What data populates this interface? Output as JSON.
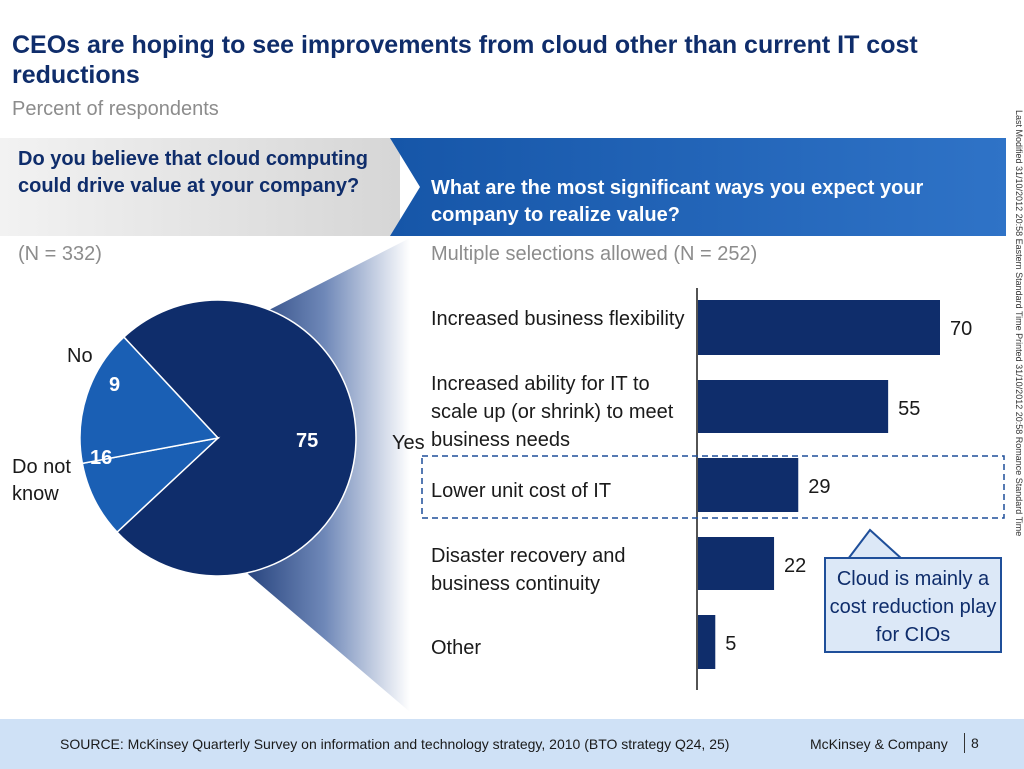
{
  "header": {
    "title": "CEOs are hoping to see improvements from cloud other than current IT cost reductions",
    "subtitle": "Percent of respondents"
  },
  "left_panel": {
    "question": "Do you believe that cloud computing could drive value at your company?",
    "n_note": "(N = 332)"
  },
  "right_panel": {
    "question": "What are the most significant ways you expect your company to realize value?",
    "n_note": "Multiple selections allowed (N = 252)"
  },
  "callout": {
    "text": "Cloud is mainly a cost reduction play for CIOs"
  },
  "footer": {
    "source": "SOURCE: McKinsey Quarterly Survey on information and technology strategy, 2010 (BTO strategy Q24, 25)",
    "company": "McKinsey & Company",
    "page": "8"
  },
  "side_note": {
    "text": "Last Modified 31/10/2012 20:58 Eastern Standard Time    Printed 31/10/2012 20:58 Romance Standard Time"
  },
  "colors": {
    "navy": "#0f2d6b",
    "mid_blue": "#1a5fb4",
    "highlight_border": "#1f4f9a",
    "header_band": "#1e5aa8",
    "footer_band": "#cfe1f6"
  },
  "chart_data": [
    {
      "type": "pie",
      "title": "Do you believe that cloud computing could drive value at your company?",
      "categories": [
        "Yes",
        "No",
        "Do not know"
      ],
      "values": [
        75,
        9,
        16
      ],
      "value_labels": [
        "75",
        "9",
        "16"
      ],
      "category_labels": [
        "Yes",
        "No",
        "Do not know"
      ]
    },
    {
      "type": "bar",
      "orientation": "horizontal",
      "title": "What are the most significant ways you expect your company to realize value?",
      "categories": [
        "Increased business flexibility",
        "Increased ability for IT to scale up (or shrink) to meet business needs",
        "Lower unit cost of IT",
        "Disaster recovery and business continuity",
        "Other"
      ],
      "values": [
        70,
        55,
        29,
        22,
        5
      ],
      "value_labels": [
        "70",
        "55",
        "29",
        "22",
        "5"
      ],
      "highlighted_category": "Lower unit cost of IT",
      "xlim": [
        0,
        70
      ]
    }
  ]
}
